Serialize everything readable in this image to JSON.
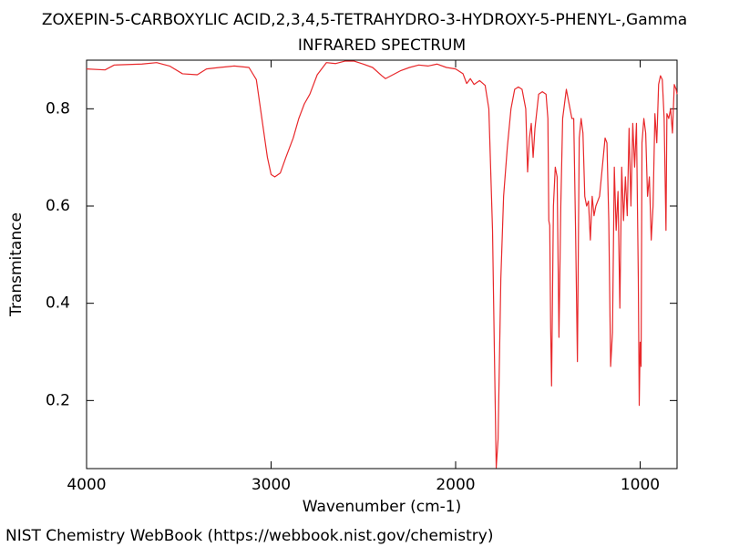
{
  "chart_data": {
    "type": "line",
    "title": "ZOXEPIN-5-CARBOXYLIC ACID,2,3,4,5-TETRAHYDRO-3-HYDROXY-5-PHENYL-,Gamma",
    "subtitle": "INFRARED SPECTRUM",
    "xlabel": "Wavenumber (cm-1)",
    "ylabel": "Transmitance",
    "footer": "NIST Chemistry WebBook (https://webbook.nist.gov/chemistry)",
    "color": "#e8282b",
    "xlim": [
      4000,
      800
    ],
    "xticks": [
      4000,
      3000,
      2000,
      1000
    ],
    "ylim": [
      0.06,
      0.9
    ],
    "yticks": [
      0.2,
      0.4,
      0.6,
      0.8
    ],
    "grid": false,
    "x": [
      4000,
      3900,
      3850,
      3700,
      3620,
      3550,
      3480,
      3400,
      3350,
      3280,
      3200,
      3120,
      3080,
      3050,
      3020,
      3000,
      2980,
      2950,
      2920,
      2880,
      2850,
      2820,
      2790,
      2750,
      2700,
      2650,
      2600,
      2550,
      2500,
      2450,
      2400,
      2380,
      2300,
      2250,
      2200,
      2150,
      2100,
      2050,
      2000,
      1960,
      1940,
      1920,
      1900,
      1870,
      1840,
      1820,
      1800,
      1790,
      1780,
      1770,
      1755,
      1740,
      1720,
      1700,
      1680,
      1660,
      1640,
      1620,
      1610,
      1600,
      1590,
      1580,
      1570,
      1550,
      1530,
      1510,
      1500,
      1495,
      1490,
      1485,
      1480,
      1470,
      1460,
      1450,
      1440,
      1430,
      1420,
      1400,
      1380,
      1370,
      1360,
      1350,
      1340,
      1330,
      1320,
      1310,
      1300,
      1290,
      1280,
      1270,
      1260,
      1250,
      1240,
      1220,
      1200,
      1190,
      1180,
      1170,
      1160,
      1150,
      1140,
      1130,
      1120,
      1110,
      1100,
      1090,
      1080,
      1070,
      1060,
      1050,
      1040,
      1030,
      1020,
      1010,
      1005,
      1000,
      995,
      990,
      980,
      970,
      960,
      950,
      940,
      930,
      920,
      910,
      900,
      890,
      880,
      870,
      860,
      855,
      845,
      835,
      825,
      815,
      805,
      800
    ],
    "values": [
      0.882,
      0.88,
      0.89,
      0.892,
      0.895,
      0.888,
      0.872,
      0.87,
      0.882,
      0.885,
      0.888,
      0.885,
      0.86,
      0.78,
      0.7,
      0.665,
      0.66,
      0.668,
      0.7,
      0.74,
      0.78,
      0.81,
      0.83,
      0.87,
      0.895,
      0.893,
      0.898,
      0.898,
      0.892,
      0.885,
      0.868,
      0.862,
      0.878,
      0.885,
      0.89,
      0.888,
      0.892,
      0.885,
      0.882,
      0.872,
      0.852,
      0.862,
      0.85,
      0.858,
      0.848,
      0.8,
      0.55,
      0.3,
      0.062,
      0.12,
      0.45,
      0.62,
      0.72,
      0.8,
      0.84,
      0.845,
      0.84,
      0.8,
      0.67,
      0.74,
      0.77,
      0.7,
      0.76,
      0.83,
      0.835,
      0.83,
      0.78,
      0.57,
      0.56,
      0.35,
      0.23,
      0.6,
      0.68,
      0.66,
      0.33,
      0.6,
      0.78,
      0.84,
      0.8,
      0.78,
      0.78,
      0.55,
      0.28,
      0.74,
      0.78,
      0.75,
      0.62,
      0.6,
      0.61,
      0.53,
      0.62,
      0.58,
      0.6,
      0.62,
      0.7,
      0.74,
      0.73,
      0.57,
      0.27,
      0.34,
      0.68,
      0.55,
      0.63,
      0.39,
      0.68,
      0.57,
      0.66,
      0.58,
      0.76,
      0.6,
      0.77,
      0.68,
      0.77,
      0.45,
      0.19,
      0.32,
      0.27,
      0.73,
      0.78,
      0.75,
      0.62,
      0.66,
      0.53,
      0.6,
      0.79,
      0.73,
      0.85,
      0.868,
      0.86,
      0.78,
      0.55,
      0.79,
      0.78,
      0.8,
      0.75,
      0.85,
      0.84,
      0.83
    ]
  }
}
